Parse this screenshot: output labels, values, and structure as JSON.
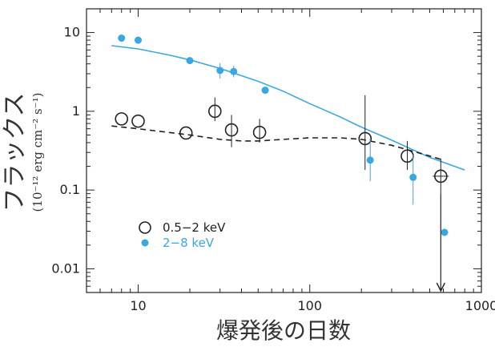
{
  "chart_data": {
    "type": "scatter",
    "xscale": "log",
    "yscale": "log",
    "xlim": [
      5,
      1000
    ],
    "ylim": [
      0.005,
      20
    ],
    "xticks": [
      {
        "value": 10,
        "label": "10"
      },
      {
        "value": 100,
        "label": "100"
      },
      {
        "value": 1000,
        "label": "1000"
      }
    ],
    "yticks": [
      {
        "value": 0.01,
        "label": "0.01"
      },
      {
        "value": 0.1,
        "label": "0.1"
      },
      {
        "value": 1,
        "label": "1"
      },
      {
        "value": 10,
        "label": "10"
      }
    ],
    "xlabel": "爆発後の日数",
    "ylabel": "フラックス",
    "ylabel_unit": "(10⁻¹² erg cm⁻² s⁻¹)",
    "legend_position": "lower-left",
    "series": [
      {
        "name": "0.5−2 keV",
        "marker": "open-circle",
        "color": "#222222",
        "points": [
          {
            "x": 8,
            "y": 0.8
          },
          {
            "x": 10,
            "y": 0.75
          },
          {
            "x": 19,
            "y": 0.53
          },
          {
            "x": 28,
            "y": 1.0,
            "ylo": 0.75,
            "yhi": 1.5
          },
          {
            "x": 35,
            "y": 0.58,
            "ylo": 0.35,
            "yhi": 0.9
          },
          {
            "x": 51,
            "y": 0.54,
            "ylo": 0.4,
            "yhi": 0.8
          },
          {
            "x": 210,
            "y": 0.45,
            "ylo": 0.18,
            "yhi": 1.6
          },
          {
            "x": 370,
            "y": 0.27,
            "ylo": 0.18,
            "yhi": 0.42
          },
          {
            "x": 580,
            "y": 0.15,
            "ylo": 0.09,
            "yhi": 0.25
          }
        ]
      },
      {
        "name": "2−8 keV",
        "marker": "filled-circle",
        "color": "#3aa8e0",
        "points": [
          {
            "x": 8,
            "y": 8.5
          },
          {
            "x": 10,
            "y": 8.0
          },
          {
            "x": 20,
            "y": 4.4
          },
          {
            "x": 30,
            "y": 3.3,
            "ylo": 2.6,
            "yhi": 4.1
          },
          {
            "x": 36,
            "y": 3.2,
            "ylo": 2.7,
            "yhi": 3.8
          },
          {
            "x": 55,
            "y": 1.85
          },
          {
            "x": 225,
            "y": 0.24,
            "ylo": 0.13,
            "yhi": 0.45
          },
          {
            "x": 400,
            "y": 0.145,
            "ylo": 0.065,
            "yhi": 0.28
          },
          {
            "x": 610,
            "y": 0.029,
            "upper_limit": true
          }
        ]
      }
    ],
    "model_curves": [
      {
        "style": "solid",
        "color": "#3aa8e0",
        "x": [
          7,
          10,
          15,
          20,
          30,
          50,
          70,
          100,
          150,
          200,
          300,
          500,
          800
        ],
        "y": [
          6.8,
          6.2,
          5.2,
          4.5,
          3.5,
          2.4,
          1.8,
          1.25,
          0.85,
          0.63,
          0.43,
          0.26,
          0.18
        ]
      },
      {
        "style": "dashed",
        "color": "#222222",
        "x": [
          7,
          10,
          15,
          20,
          30,
          40,
          50,
          70,
          100,
          150,
          200,
          300,
          400,
          500,
          600
        ],
        "y": [
          0.65,
          0.6,
          0.54,
          0.5,
          0.44,
          0.42,
          0.42,
          0.44,
          0.46,
          0.46,
          0.44,
          0.37,
          0.31,
          0.27,
          0.24
        ]
      }
    ]
  }
}
